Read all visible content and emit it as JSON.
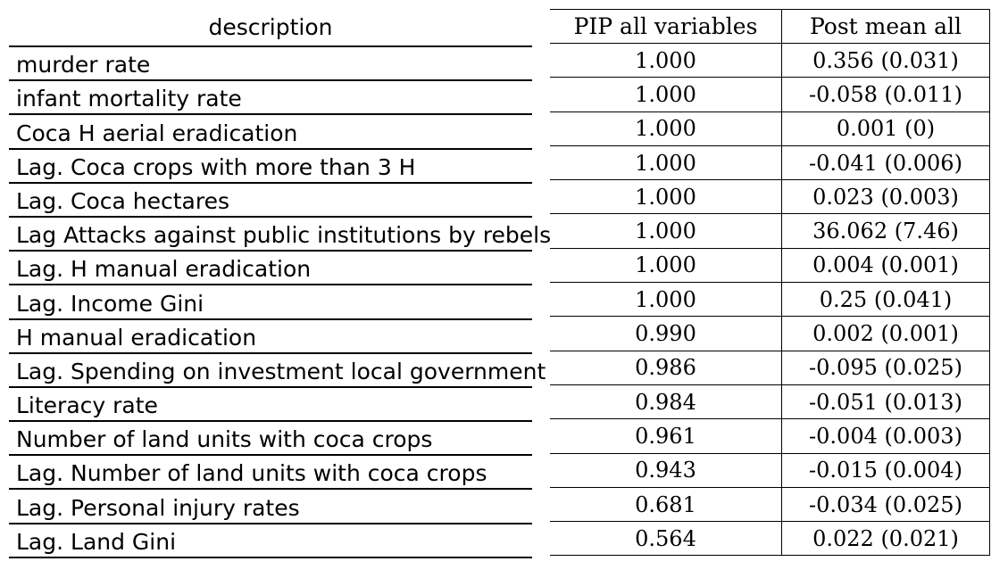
{
  "left": {
    "header": "description",
    "rows": [
      "murder rate",
      "infant mortality rate",
      "Coca H aerial eradication",
      "Lag. Coca crops with more than 3 H",
      "Lag. Coca hectares",
      "Lag Attacks against public institutions by rebels",
      "Lag. H manual eradication",
      "Lag. Income Gini",
      "H manual eradication",
      "Lag. Spending on investment local government",
      "Literacy rate",
      "Number of land units with coca crops",
      "Lag. Number of land units with coca crops",
      "Lag. Personal injury rates",
      "Lag. Land Gini"
    ]
  },
  "right": {
    "headers": [
      "PIP all variables",
      "Post mean all"
    ],
    "rows": [
      [
        "1.000",
        "0.356 (0.031)"
      ],
      [
        "1.000",
        "-0.058 (0.011)"
      ],
      [
        "1.000",
        "0.001 (0)"
      ],
      [
        "1.000",
        "-0.041 (0.006)"
      ],
      [
        "1.000",
        "0.023 (0.003)"
      ],
      [
        "1.000",
        "36.062 (7.46)"
      ],
      [
        "1.000",
        "0.004 (0.001)"
      ],
      [
        "1.000",
        "0.25 (0.041)"
      ],
      [
        "0.990",
        "0.002 (0.001)"
      ],
      [
        "0.986",
        "-0.095 (0.025)"
      ],
      [
        "0.984",
        "-0.051 (0.013)"
      ],
      [
        "0.961",
        "-0.004 (0.003)"
      ],
      [
        "0.943",
        "-0.015 (0.004)"
      ],
      [
        "0.681",
        "-0.034 (0.025)"
      ],
      [
        "0.564",
        "0.022 (0.021)"
      ]
    ]
  }
}
